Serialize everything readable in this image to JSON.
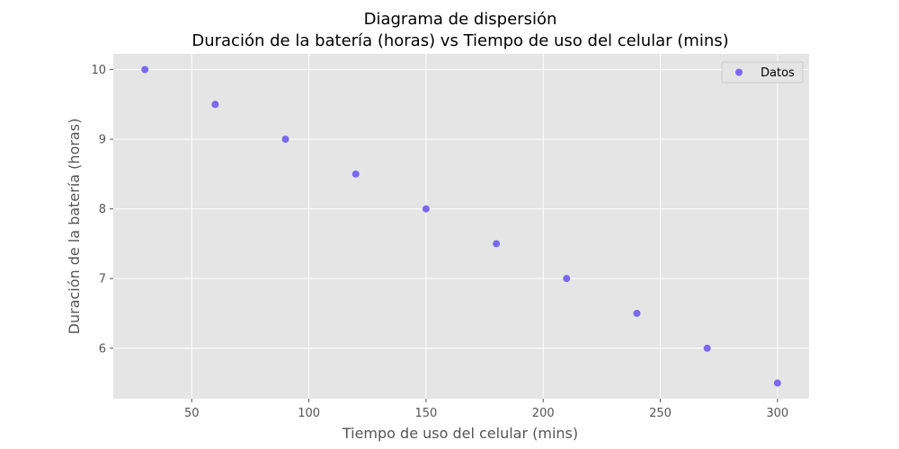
{
  "chart_data": {
    "type": "scatter",
    "title": "Diagrama de dispersión",
    "subtitle": "Duración de la batería (horas) vs Tiempo de uso del celular (mins)",
    "xlabel": "Tiempo de uso del celular (mins)",
    "ylabel": "Duración de la batería (horas)",
    "xlim": [
      16.5,
      313.5
    ],
    "ylim": [
      5.275,
      10.225
    ],
    "xticks": [
      50,
      100,
      150,
      200,
      250,
      300
    ],
    "yticks": [
      6,
      7,
      8,
      9,
      10
    ],
    "grid": true,
    "legend_position": "top-right",
    "series": [
      {
        "name": "Datos",
        "color": "#7b68ee",
        "x": [
          30,
          60,
          90,
          120,
          150,
          180,
          210,
          240,
          270,
          300
        ],
        "y": [
          10,
          9.5,
          9,
          8.5,
          8,
          7.5,
          7,
          6.5,
          6,
          5.5
        ]
      }
    ]
  },
  "colors": {
    "plot_background": "#e5e5e5",
    "grid": "#ffffff"
  }
}
